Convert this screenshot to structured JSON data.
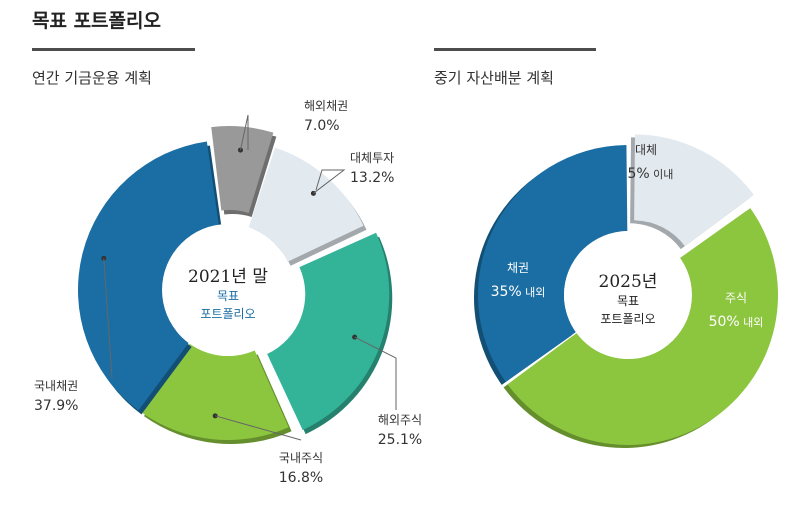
{
  "page": {
    "title": "목표 포트폴리오"
  },
  "left": {
    "subtitle": "연간 기금운용 계획"
  },
  "right": {
    "subtitle": "중기 자산배분 계획"
  },
  "colors": {
    "overseas_bond": "#999999",
    "alternative": "#e2e9ef",
    "overseas_stock": "#33b398",
    "domestic_stock": "#8cc63f",
    "domestic_bond": "#1a6ea3",
    "bond": "#1a6ea3",
    "stock": "#8cc63f",
    "alt_mid": "#e2e9ef"
  },
  "chart_data": [
    {
      "type": "pie",
      "title": "연간 기금운용 계획",
      "center_text": {
        "line1": "2021년 말",
        "line2": "목표",
        "line3": "포트폴리오"
      },
      "series": [
        {
          "name": "해외채권",
          "label": "해외채권",
          "value_text": "7.0%",
          "value": 7.0,
          "color_key": "overseas_bond"
        },
        {
          "name": "대체투자",
          "label": "대체투자",
          "value_text": "13.2%",
          "value": 13.2,
          "color_key": "alternative"
        },
        {
          "name": "해외주식",
          "label": "해외주식",
          "value_text": "25.1%",
          "value": 25.1,
          "color_key": "overseas_stock"
        },
        {
          "name": "국내주식",
          "label": "국내주식",
          "value_text": "16.8%",
          "value": 16.8,
          "color_key": "domestic_stock"
        },
        {
          "name": "국내채권",
          "label": "국내채권",
          "value_text": "37.9%",
          "value": 37.9,
          "color_key": "domestic_bond"
        }
      ]
    },
    {
      "type": "pie",
      "title": "중기 자산배분 계획",
      "center_text": {
        "line1": "2025년",
        "line2": "목표",
        "line3": "포트폴리오"
      },
      "series": [
        {
          "name": "대체",
          "label": "대체",
          "value_main": "15%",
          "value_suffix": " 이내",
          "value": 15,
          "color_key": "alt_mid"
        },
        {
          "name": "주식",
          "label": "주식",
          "value_main": "50%",
          "value_suffix": " 내외",
          "value": 50,
          "color_key": "stock"
        },
        {
          "name": "채권",
          "label": "채권",
          "value_main": "35%",
          "value_suffix": " 내외",
          "value": 35,
          "color_key": "bond"
        }
      ]
    }
  ]
}
